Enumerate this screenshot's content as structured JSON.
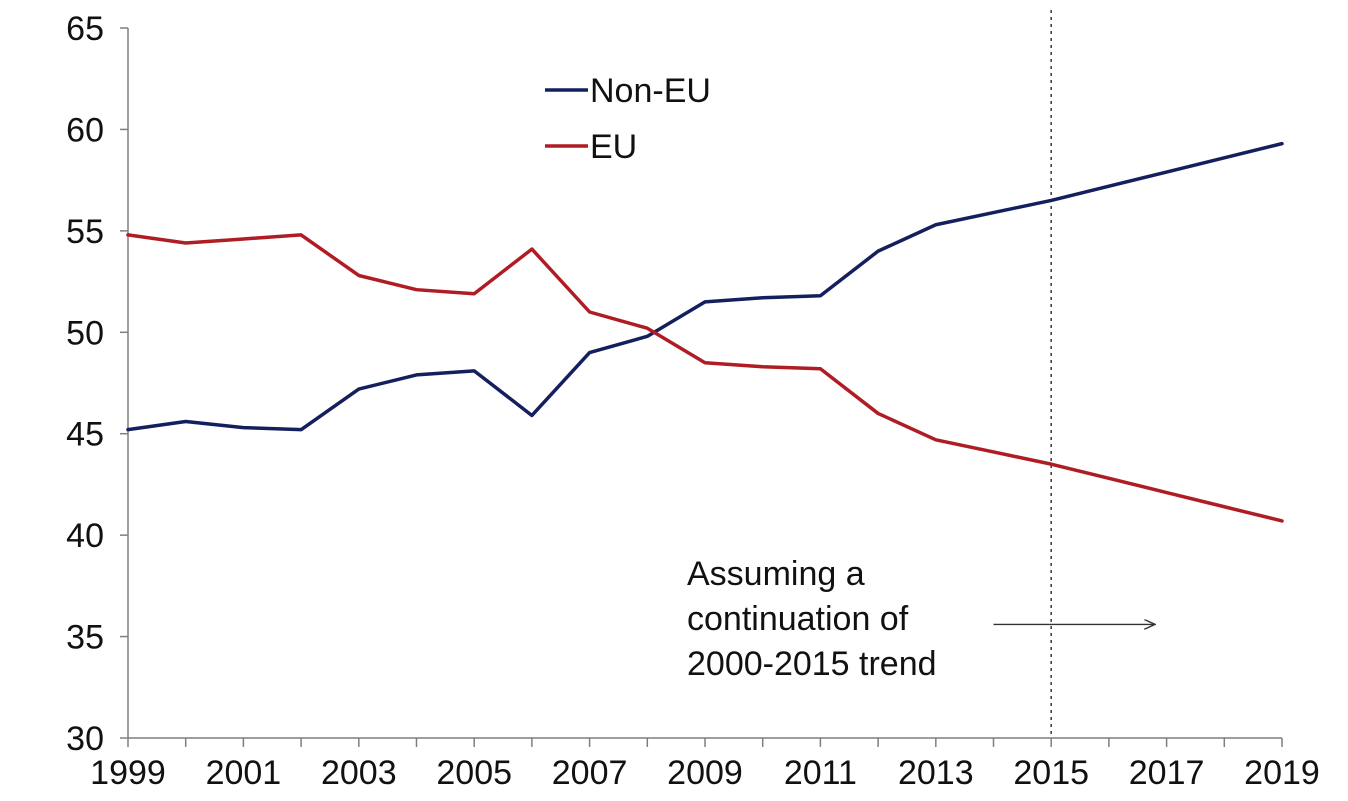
{
  "chart_data": {
    "type": "line",
    "title": "",
    "xlabel": "",
    "ylabel": "",
    "x": [
      1999,
      2000,
      2001,
      2002,
      2003,
      2004,
      2005,
      2006,
      2007,
      2008,
      2009,
      2010,
      2011,
      2012,
      2013,
      2014,
      2015,
      2016,
      2017,
      2018,
      2019
    ],
    "xlim": [
      1999,
      2019
    ],
    "ylim": [
      30,
      65
    ],
    "x_tick_labels": [
      "1999",
      "2001",
      "2003",
      "2005",
      "2007",
      "2009",
      "2011",
      "2013",
      "2015",
      "2017",
      "2019"
    ],
    "y_tick_labels": [
      "30",
      "35",
      "40",
      "45",
      "50",
      "55",
      "60",
      "65"
    ],
    "grid": false,
    "legend_position": "top-center",
    "series": [
      {
        "name": "Non-EU",
        "color": "#14205e",
        "values": [
          45.2,
          45.6,
          45.3,
          45.2,
          47.2,
          47.9,
          48.1,
          45.9,
          49.0,
          49.8,
          51.5,
          51.7,
          51.8,
          54.0,
          55.3,
          55.9,
          56.5,
          57.2,
          57.9,
          58.6,
          59.3
        ]
      },
      {
        "name": "EU",
        "color": "#b01c24",
        "values": [
          54.8,
          54.4,
          54.6,
          54.8,
          52.8,
          52.1,
          51.9,
          54.1,
          51.0,
          50.2,
          48.5,
          48.3,
          48.2,
          46.0,
          44.7,
          44.1,
          43.5,
          42.8,
          42.1,
          41.4,
          40.7
        ]
      }
    ],
    "reference_line": {
      "x": 2015,
      "style": "dotted"
    },
    "annotation": {
      "lines": [
        "Assuming a",
        "continuation of",
        "2000-2015 trend"
      ],
      "arrow_from_x": 2014,
      "arrow_to_x": 2016.8,
      "arrow_y": 35.6
    }
  }
}
